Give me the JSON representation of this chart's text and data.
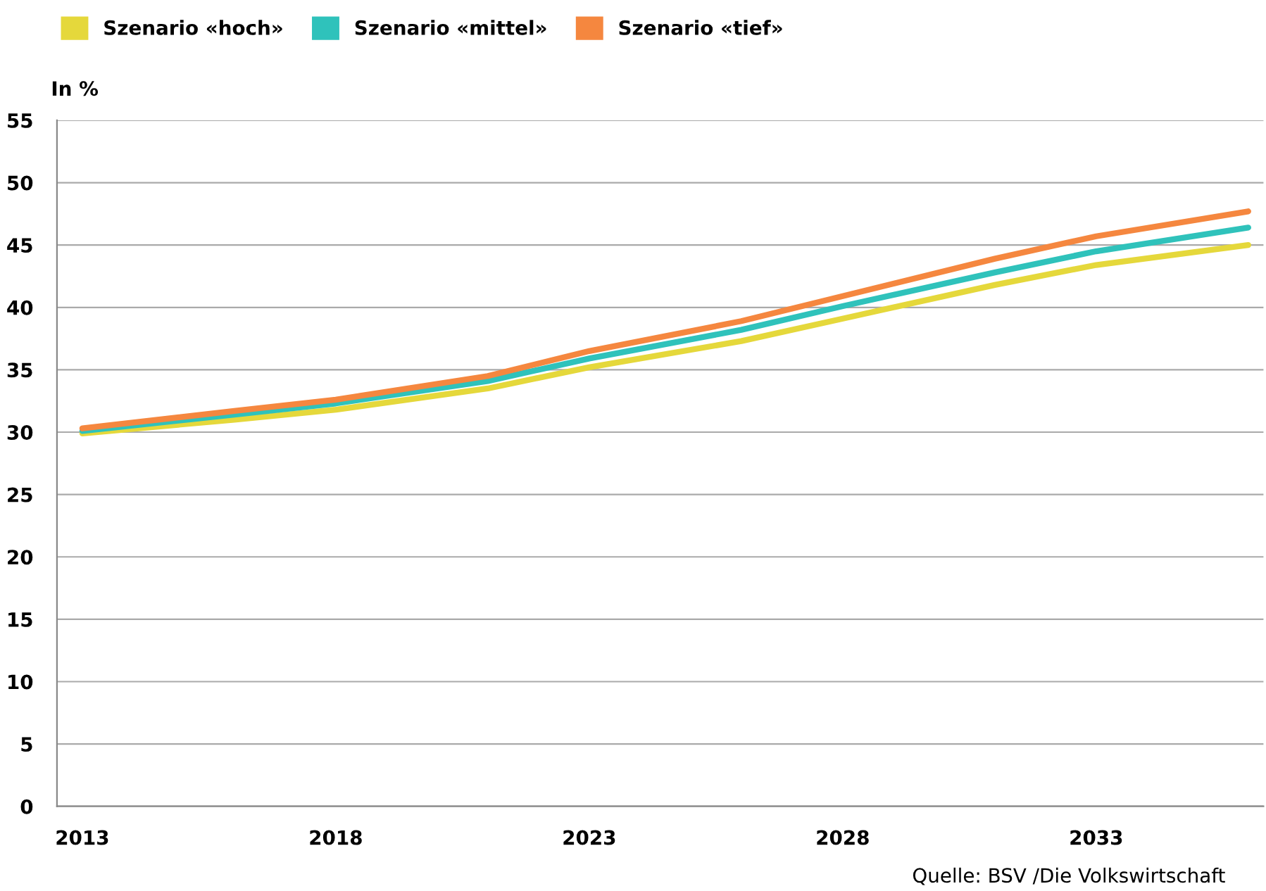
{
  "chart_data": {
    "type": "line",
    "ylabel": "In %",
    "x": [
      2013,
      2016,
      2018,
      2021,
      2023,
      2026,
      2028,
      2031,
      2033,
      2036
    ],
    "series": [
      {
        "name": "Szenario «hoch»",
        "color": "#e5d83b",
        "values": [
          29.9,
          31.0,
          31.8,
          33.5,
          35.2,
          37.3,
          39.1,
          41.8,
          43.4,
          45.0
        ]
      },
      {
        "name": "Szenario «mittel»",
        "color": "#2fc2bb",
        "values": [
          30.1,
          31.4,
          32.3,
          34.1,
          35.9,
          38.2,
          40.1,
          42.8,
          44.5,
          46.4
        ]
      },
      {
        "name": "Szenario «tief»",
        "color": "#f5873f",
        "values": [
          30.3,
          31.7,
          32.6,
          34.5,
          36.5,
          38.9,
          40.9,
          43.9,
          45.7,
          47.7
        ]
      }
    ],
    "xlim": [
      2012.5,
      2036.3
    ],
    "xticks": [
      2013,
      2018,
      2023,
      2028,
      2033
    ],
    "ylim": [
      0,
      55
    ],
    "yticks": [
      0,
      5,
      10,
      15,
      20,
      25,
      30,
      35,
      40,
      45,
      50,
      55
    ],
    "grid": "y",
    "legend": "top left",
    "marker": "none",
    "line_style": "solid",
    "annotations": [
      "Quelle: BSV /Die Volkswirtschaft"
    ]
  }
}
